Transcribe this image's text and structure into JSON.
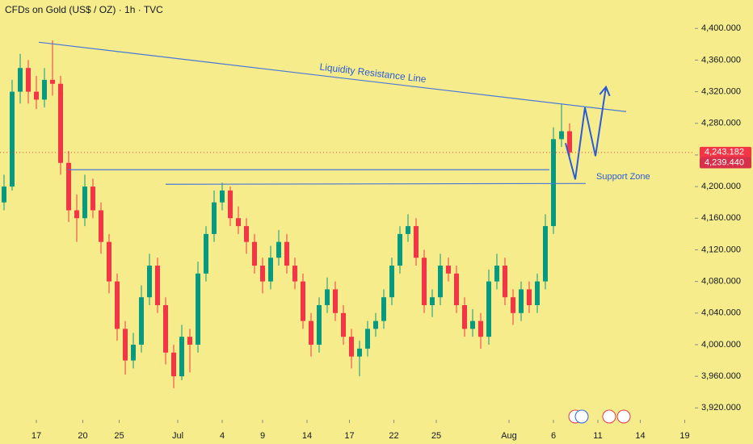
{
  "chart_data": {
    "type": "candlestick",
    "title": "CFDs on Gold (US$ / OZ) · 1h · TVC",
    "up_color": "#089981",
    "down_color": "#f23645",
    "xlim": [
      0,
      172
    ],
    "ylim": [
      3905,
      4436
    ],
    "yticks": [
      {
        "value": 4400,
        "label": "4,400.000"
      },
      {
        "value": 4360,
        "label": "4,360.000"
      },
      {
        "value": 4320,
        "label": "4,320.000"
      },
      {
        "value": 4280,
        "label": "4,280.000"
      },
      {
        "value": 4240,
        "label": "4,240.000"
      },
      {
        "value": 4200,
        "label": "4,200.000"
      },
      {
        "value": 4160,
        "label": "4,160.000"
      },
      {
        "value": 4120,
        "label": "4,120.000"
      },
      {
        "value": 4080,
        "label": "4,080.000"
      },
      {
        "value": 4040,
        "label": "4,040.000"
      },
      {
        "value": 4000,
        "label": "4,000.000"
      },
      {
        "value": 3960,
        "label": "3,960.000"
      },
      {
        "value": 3920,
        "label": "3,920.000"
      }
    ],
    "xticks": [
      {
        "value": 9,
        "label": "17"
      },
      {
        "value": 20.5,
        "label": "20"
      },
      {
        "value": 29.5,
        "label": "25"
      },
      {
        "value": 44,
        "label": "Jul"
      },
      {
        "value": 55,
        "label": "4"
      },
      {
        "value": 65,
        "label": "9"
      },
      {
        "value": 76,
        "label": "14"
      },
      {
        "value": 86.5,
        "label": "17"
      },
      {
        "value": 97.5,
        "label": "22"
      },
      {
        "value": 108,
        "label": "25"
      },
      {
        "value": 126,
        "label": "Aug"
      },
      {
        "value": 137,
        "label": "6"
      },
      {
        "value": 148,
        "label": "11"
      },
      {
        "value": 158.5,
        "label": "14"
      },
      {
        "value": 169.5,
        "label": "19"
      }
    ],
    "x": [
      1,
      3,
      5,
      7,
      9,
      11,
      13,
      15,
      17,
      19,
      21,
      23,
      25,
      27,
      29,
      31,
      33,
      35,
      37,
      39,
      41,
      43,
      45,
      47,
      49,
      51,
      53,
      55,
      57,
      59,
      61,
      63,
      65,
      67,
      69,
      71,
      73,
      75,
      77,
      79,
      81,
      83,
      85,
      87,
      89,
      91,
      93,
      95,
      97,
      99,
      101,
      103,
      105,
      107,
      109,
      111,
      113,
      115,
      117,
      119,
      121,
      123,
      125,
      127,
      129,
      131,
      133,
      135,
      137,
      139,
      141
    ],
    "candles": [
      [
        4180,
        4215,
        4170,
        4200
      ],
      [
        4200,
        4335,
        4195,
        4320
      ],
      [
        4320,
        4368,
        4305,
        4350
      ],
      [
        4350,
        4360,
        4305,
        4320
      ],
      [
        4320,
        4340,
        4298,
        4310
      ],
      [
        4310,
        4350,
        4300,
        4335
      ],
      [
        4335,
        4385,
        4315,
        4330
      ],
      [
        4330,
        4340,
        4215,
        4230
      ],
      [
        4230,
        4245,
        4155,
        4170
      ],
      [
        4170,
        4190,
        4130,
        4160
      ],
      [
        4160,
        4215,
        4150,
        4200
      ],
      [
        4200,
        4210,
        4160,
        4170
      ],
      [
        4170,
        4180,
        4115,
        4130
      ],
      [
        4130,
        4140,
        4065,
        4080
      ],
      [
        4080,
        4090,
        4005,
        4020
      ],
      [
        4020,
        4030,
        3962,
        3980
      ],
      [
        3980,
        4015,
        3970,
        4000
      ],
      [
        4000,
        4075,
        3990,
        4060
      ],
      [
        4060,
        4115,
        4050,
        4100
      ],
      [
        4100,
        4110,
        4040,
        4050
      ],
      [
        4050,
        4060,
        3975,
        3990
      ],
      [
        3990,
        4000,
        3945,
        3960
      ],
      [
        3960,
        4025,
        3955,
        4010
      ],
      [
        4010,
        4020,
        3965,
        4000
      ],
      [
        4000,
        4105,
        3990,
        4090
      ],
      [
        4090,
        4150,
        4080,
        4140
      ],
      [
        4140,
        4195,
        4130,
        4180
      ],
      [
        4180,
        4205,
        4170,
        4195
      ],
      [
        4195,
        4200,
        4150,
        4160
      ],
      [
        4160,
        4175,
        4140,
        4150
      ],
      [
        4150,
        4160,
        4115,
        4130
      ],
      [
        4130,
        4140,
        4090,
        4100
      ],
      [
        4100,
        4110,
        4065,
        4080
      ],
      [
        4080,
        4125,
        4070,
        4110
      ],
      [
        4110,
        4145,
        4100,
        4130
      ],
      [
        4130,
        4140,
        4090,
        4100
      ],
      [
        4100,
        4110,
        4070,
        4080
      ],
      [
        4080,
        4090,
        4020,
        4030
      ],
      [
        4030,
        4040,
        3985,
        4000
      ],
      [
        4000,
        4060,
        3990,
        4050
      ],
      [
        4050,
        4085,
        4040,
        4070
      ],
      [
        4070,
        4080,
        4030,
        4040
      ],
      [
        4040,
        4050,
        4000,
        4010
      ],
      [
        4010,
        4020,
        3970,
        3985
      ],
      [
        3985,
        4005,
        3960,
        3995
      ],
      [
        3995,
        4030,
        3985,
        4020
      ],
      [
        4020,
        4040,
        4010,
        4030
      ],
      [
        4030,
        4070,
        4020,
        4060
      ],
      [
        4060,
        4110,
        4050,
        4100
      ],
      [
        4100,
        4150,
        4090,
        4140
      ],
      [
        4140,
        4165,
        4130,
        4150
      ],
      [
        4150,
        4160,
        4100,
        4110
      ],
      [
        4110,
        4120,
        4040,
        4050
      ],
      [
        4050,
        4070,
        4035,
        4060
      ],
      [
        4060,
        4115,
        4050,
        4100
      ],
      [
        4100,
        4110,
        4080,
        4090
      ],
      [
        4090,
        4100,
        4040,
        4050
      ],
      [
        4050,
        4060,
        4010,
        4020
      ],
      [
        4020,
        4045,
        4010,
        4030
      ],
      [
        4030,
        4040,
        3995,
        4010
      ],
      [
        4010,
        4095,
        4000,
        4080
      ],
      [
        4080,
        4115,
        4070,
        4100
      ],
      [
        4100,
        4110,
        4050,
        4060
      ],
      [
        4060,
        4070,
        4025,
        4040
      ],
      [
        4040,
        4080,
        4030,
        4070
      ],
      [
        4070,
        4080,
        4040,
        4050
      ],
      [
        4050,
        4090,
        4040,
        4080
      ],
      [
        4080,
        4165,
        4070,
        4150
      ],
      [
        4150,
        4275,
        4140,
        4260
      ],
      [
        4260,
        4305,
        4250,
        4270
      ],
      [
        4270,
        4280,
        4235,
        4243.182
      ]
    ],
    "resistance_line": {
      "label": "Liquidity Resistance Line",
      "color": "#4a78d8",
      "x": [
        9.6,
        155
      ],
      "y": [
        4382.6,
        4294.8
      ]
    },
    "support_lines": {
      "label": "Support Zone",
      "color": "#4a78d8",
      "x": [
        [
          17,
          136
        ],
        [
          41,
          145
        ]
      ],
      "y": [
        [
          4221.3,
          4221.3
        ],
        [
          4202.9,
          4203.9
        ]
      ]
    },
    "projection": {
      "color": "#2a5bd7",
      "x": [
        140,
        142.4,
        144.8,
        147.4,
        150
      ],
      "y": [
        4255,
        4209,
        4300,
        4238.6,
        4326
      ]
    },
    "price_tags": [
      {
        "value": 4243.182,
        "label": "4,243.182"
      },
      {
        "value": 4239.44,
        "label": "4,239.440"
      }
    ]
  }
}
